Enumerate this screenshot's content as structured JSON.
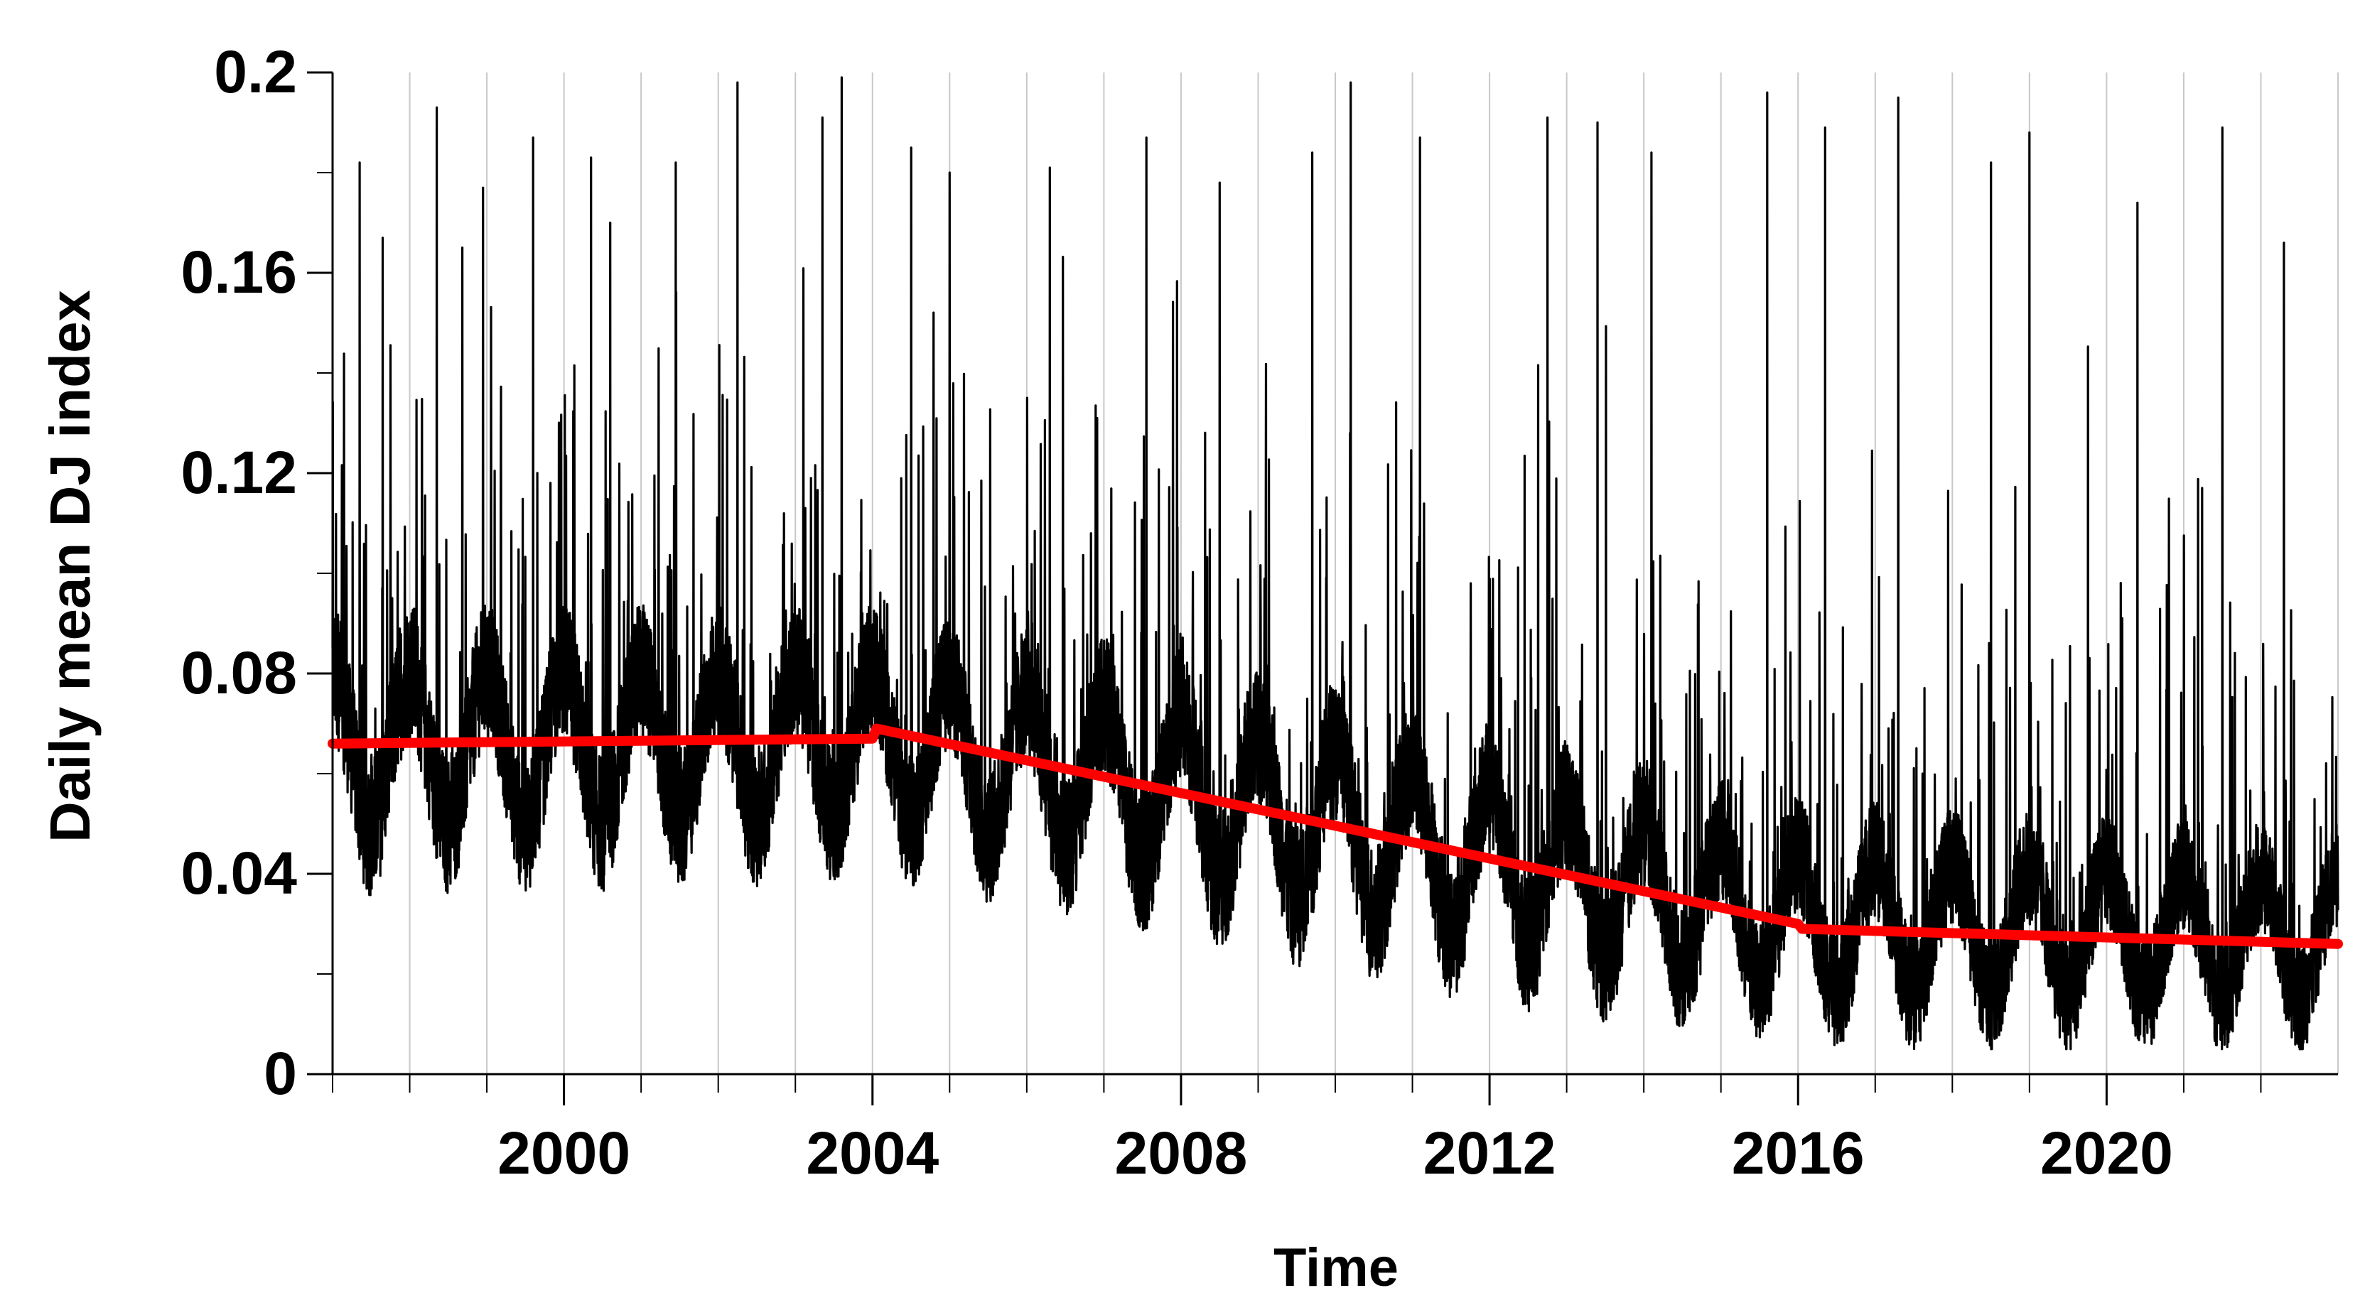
{
  "chart_data": {
    "type": "line",
    "title": "",
    "xlabel": "Time",
    "ylabel": "Daily mean DJ index",
    "xlim": [
      1997,
      2023.0
    ],
    "ylim": [
      0,
      0.2
    ],
    "x_major_ticks": [
      2000,
      2004,
      2008,
      2012,
      2016,
      2020
    ],
    "x_minor_ticks": [
      1997,
      1998,
      1999,
      2001,
      2002,
      2003,
      2005,
      2006,
      2007,
      2009,
      2010,
      2011,
      2013,
      2014,
      2015,
      2017,
      2018,
      2019,
      2021,
      2022
    ],
    "y_ticks": [
      0,
      0.04,
      0.08,
      0.12,
      0.16,
      0.2
    ],
    "y_tick_labels": [
      "0",
      "0.04",
      "0.08",
      "0.12",
      "0.16",
      "0.2"
    ],
    "x_tick_labels": [
      "2000",
      "2004",
      "2008",
      "2012",
      "2016",
      "2020"
    ],
    "grid": "vertical gridlines at each year",
    "series": [
      {
        "color": "#000000",
        "style": "daily time series",
        "seasonal_baseline": [
          {
            "x": 1997.0,
            "y": 0.065
          },
          {
            "x": 2000.0,
            "y": 0.065
          },
          {
            "x": 2004.0,
            "y": 0.066
          },
          {
            "x": 2008.0,
            "y": 0.056
          },
          {
            "x": 2012.0,
            "y": 0.042
          },
          {
            "x": 2016.0,
            "y": 0.03
          },
          {
            "x": 2020.0,
            "y": 0.028
          },
          {
            "x": 2023.0,
            "y": 0.027
          }
        ],
        "seasonal_amplitude": [
          {
            "x": 1997.0,
            "y": 0.026
          },
          {
            "x": 2004.0,
            "y": 0.024
          },
          {
            "x": 2010.0,
            "y": 0.026
          },
          {
            "x": 2016.0,
            "y": 0.022
          },
          {
            "x": 2023.0,
            "y": 0.02
          }
        ],
        "spikes": [
          {
            "x": 1997.35,
            "y": 0.182
          },
          {
            "x": 1997.65,
            "y": 0.167
          },
          {
            "x": 1998.35,
            "y": 0.193
          },
          {
            "x": 1998.95,
            "y": 0.177
          },
          {
            "x": 1999.6,
            "y": 0.187
          },
          {
            "x": 2000.35,
            "y": 0.183
          },
          {
            "x": 2000.6,
            "y": 0.17
          },
          {
            "x": 2001.45,
            "y": 0.182
          },
          {
            "x": 2002.25,
            "y": 0.198
          },
          {
            "x": 2003.35,
            "y": 0.191
          },
          {
            "x": 2003.6,
            "y": 0.199
          },
          {
            "x": 2004.5,
            "y": 0.185
          },
          {
            "x": 2005.0,
            "y": 0.18
          },
          {
            "x": 2006.3,
            "y": 0.181
          },
          {
            "x": 2007.55,
            "y": 0.187
          },
          {
            "x": 2008.5,
            "y": 0.178
          },
          {
            "x": 2009.7,
            "y": 0.184
          },
          {
            "x": 2010.2,
            "y": 0.198
          },
          {
            "x": 2011.1,
            "y": 0.187
          },
          {
            "x": 2012.75,
            "y": 0.191
          },
          {
            "x": 2013.4,
            "y": 0.19
          },
          {
            "x": 2014.1,
            "y": 0.184
          },
          {
            "x": 2015.6,
            "y": 0.196
          },
          {
            "x": 2016.35,
            "y": 0.189
          },
          {
            "x": 2017.3,
            "y": 0.195
          },
          {
            "x": 2018.5,
            "y": 0.182
          },
          {
            "x": 2019.0,
            "y": 0.188
          },
          {
            "x": 2020.4,
            "y": 0.174
          },
          {
            "x": 2021.5,
            "y": 0.189
          },
          {
            "x": 2022.3,
            "y": 0.166
          }
        ],
        "y_min": 0.005
      },
      {
        "color": "#ff0000",
        "style": "piecewise linear trend",
        "points": [
          {
            "x": 1997.0,
            "y": 0.066
          },
          {
            "x": 2004.0,
            "y": 0.067
          },
          {
            "x": 2004.05,
            "y": 0.069
          },
          {
            "x": 2016.0,
            "y": 0.03
          },
          {
            "x": 2016.05,
            "y": 0.029
          },
          {
            "x": 2023.0,
            "y": 0.026
          }
        ]
      }
    ]
  }
}
